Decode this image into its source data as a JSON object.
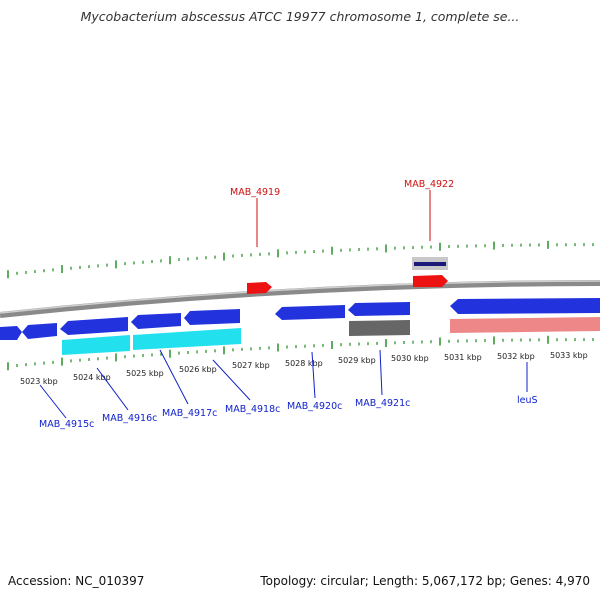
{
  "title": "Mycobacterium abscessus ATCC 19977 chromosome 1, complete se...",
  "footer": {
    "accession": "Accession: NC_010397",
    "summary": "Topology: circular; Length: 5,067,172 bp; Genes: 4,970"
  },
  "colors": {
    "gene_forward": "#2233dd",
    "gene_cyan": "#22e0ee",
    "gene_red": "#ee1111",
    "gene_gray": "#666666",
    "gene_pink": "#ee8888",
    "tick_green": "#1a8a1a",
    "label_blue": "#1122cc",
    "label_red": "#cc1111"
  },
  "scale": {
    "ticks": [
      {
        "label": "5023 kbp"
      },
      {
        "label": "5024 kbp"
      },
      {
        "label": "5025 kbp"
      },
      {
        "label": "5026 kbp"
      },
      {
        "label": "5027 kbp"
      },
      {
        "label": "5028 kbp"
      },
      {
        "label": "5029 kbp"
      },
      {
        "label": "5030 kbp"
      },
      {
        "label": "5031 kbp"
      },
      {
        "label": "5032 kbp"
      },
      {
        "label": "5033 kbp"
      }
    ]
  },
  "gene_labels": [
    {
      "name": "MAB_4919",
      "strand": "forward"
    },
    {
      "name": "MAB_4922",
      "strand": "forward"
    },
    {
      "name": "MAB_4915c",
      "strand": "reverse"
    },
    {
      "name": "MAB_4916c",
      "strand": "reverse"
    },
    {
      "name": "MAB_4917c",
      "strand": "reverse"
    },
    {
      "name": "MAB_4918c",
      "strand": "reverse"
    },
    {
      "name": "MAB_4920c",
      "strand": "reverse"
    },
    {
      "name": "MAB_4921c",
      "strand": "reverse"
    },
    {
      "name": "leuS",
      "strand": "reverse"
    }
  ]
}
